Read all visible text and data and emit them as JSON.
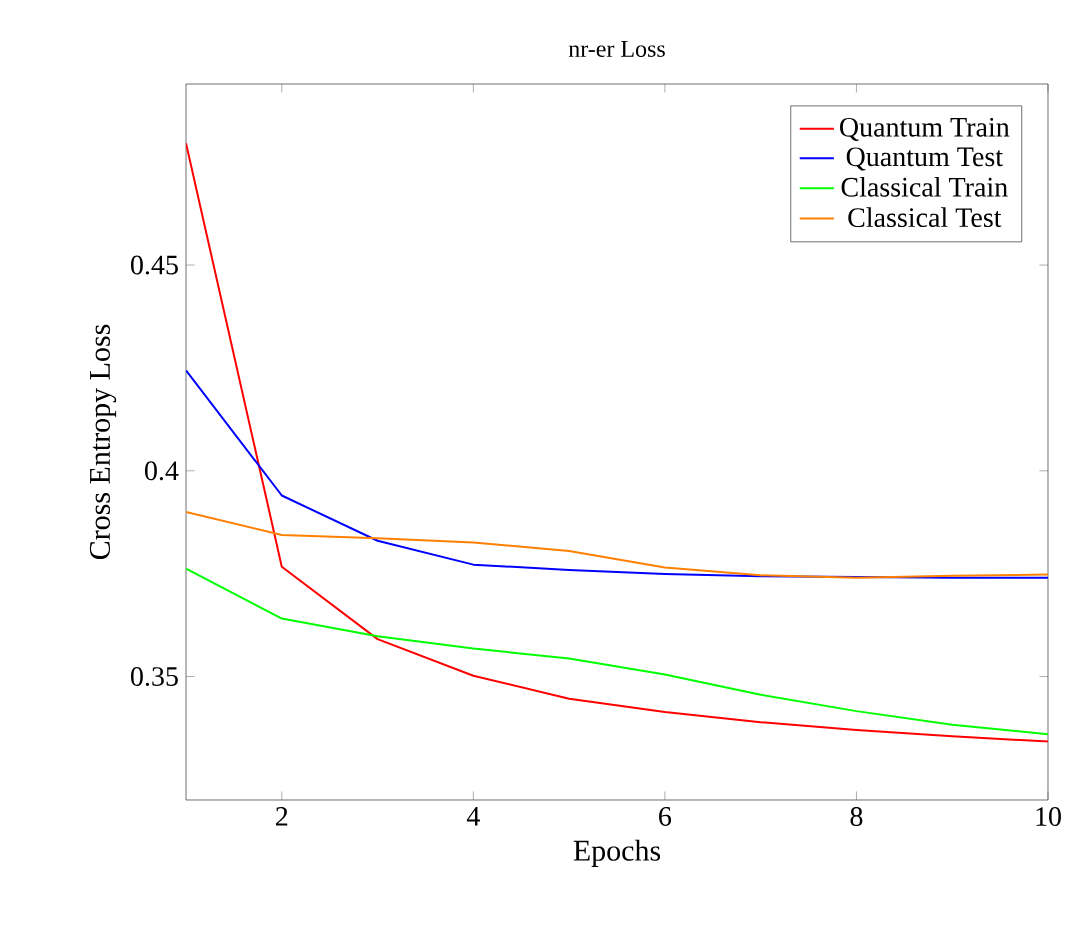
{
  "chart_data": {
    "type": "line",
    "title": "nr-er Loss",
    "xlabel": "Epochs",
    "ylabel": "Cross Entropy Loss",
    "x": [
      1,
      2,
      3,
      4,
      5,
      6,
      7,
      8,
      9,
      10
    ],
    "series": [
      {
        "name": "Quantum Train",
        "color": "#ff0000",
        "values": [
          0.4796,
          0.3767,
          0.3591,
          0.3502,
          0.3446,
          0.3414,
          0.3389,
          0.337,
          0.3355,
          0.3342
        ]
      },
      {
        "name": "Quantum Test",
        "color": "#0000ff",
        "values": [
          0.4244,
          0.394,
          0.383,
          0.3772,
          0.3759,
          0.3749,
          0.3744,
          0.3742,
          0.374,
          0.374
        ]
      },
      {
        "name": "Classical Train",
        "color": "#00ff00",
        "values": [
          0.3762,
          0.3641,
          0.3598,
          0.3568,
          0.3544,
          0.3505,
          0.3456,
          0.3416,
          0.3383,
          0.336
        ]
      },
      {
        "name": "Classical Test",
        "color": "#ff8000",
        "values": [
          0.39,
          0.3844,
          0.3836,
          0.3826,
          0.3805,
          0.3765,
          0.3746,
          0.374,
          0.3745,
          0.3748
        ]
      }
    ],
    "xlim": [
      1,
      10
    ],
    "xticks": [
      2,
      4,
      6,
      8,
      10
    ],
    "ylim": [
      0.32,
      0.494
    ],
    "yticks": [
      0.35,
      0.4,
      0.45
    ],
    "legend": "top right",
    "grid": false,
    "marker": "none",
    "line_style": "solid"
  }
}
